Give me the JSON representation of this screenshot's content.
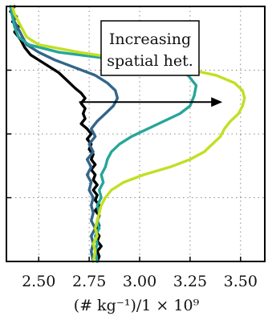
{
  "chart_data": {
    "type": "line",
    "xlabel": "(# kg⁻¹)/1 × 10⁹",
    "ylabel": "",
    "xlim": [
      2.34,
      3.62
    ],
    "ylim": [
      0,
      1
    ],
    "x_ticks": [
      2.5,
      2.75,
      3.0,
      3.25,
      3.5
    ],
    "x_tick_labels": [
      "2.50",
      "2.75",
      "3.00",
      "3.25",
      "3.50"
    ],
    "y_ticks": [
      0.25,
      0.5,
      0.75
    ],
    "grid": true,
    "annotation": {
      "lines": [
        "Increasing",
        "spatial het."
      ],
      "arrow_from": [
        2.7,
        0.625
      ],
      "arrow_to": [
        3.41,
        0.625
      ]
    },
    "series": [
      {
        "color": "#000000",
        "points": [
          [
            2.38,
            1.0
          ],
          [
            2.36,
            0.98
          ],
          [
            2.39,
            0.96
          ],
          [
            2.37,
            0.94
          ],
          [
            2.4,
            0.92
          ],
          [
            2.38,
            0.9
          ],
          [
            2.41,
            0.87
          ],
          [
            2.43,
            0.84
          ],
          [
            2.46,
            0.81
          ],
          [
            2.52,
            0.78
          ],
          [
            2.6,
            0.74
          ],
          [
            2.64,
            0.71
          ],
          [
            2.68,
            0.68
          ],
          [
            2.71,
            0.66
          ],
          [
            2.73,
            0.64
          ],
          [
            2.71,
            0.62
          ],
          [
            2.73,
            0.6
          ],
          [
            2.72,
            0.58
          ],
          [
            2.73,
            0.56
          ],
          [
            2.71,
            0.54
          ],
          [
            2.74,
            0.52
          ],
          [
            2.76,
            0.5
          ],
          [
            2.74,
            0.48
          ],
          [
            2.76,
            0.46
          ],
          [
            2.75,
            0.44
          ],
          [
            2.77,
            0.42
          ],
          [
            2.76,
            0.4
          ],
          [
            2.78,
            0.38
          ],
          [
            2.76,
            0.36
          ],
          [
            2.78,
            0.34
          ],
          [
            2.77,
            0.32
          ],
          [
            2.79,
            0.3
          ],
          [
            2.77,
            0.28
          ],
          [
            2.79,
            0.26
          ],
          [
            2.78,
            0.24
          ],
          [
            2.8,
            0.22
          ],
          [
            2.78,
            0.2
          ],
          [
            2.8,
            0.18
          ],
          [
            2.79,
            0.16
          ],
          [
            2.8,
            0.14
          ],
          [
            2.78,
            0.12
          ],
          [
            2.8,
            0.1
          ],
          [
            2.79,
            0.08
          ],
          [
            2.81,
            0.06
          ],
          [
            2.79,
            0.04
          ],
          [
            2.8,
            0.02
          ],
          [
            2.79,
            0.0
          ]
        ]
      },
      {
        "color": "#33668a",
        "points": [
          [
            2.36,
            1.0
          ],
          [
            2.37,
            0.97
          ],
          [
            2.38,
            0.94
          ],
          [
            2.4,
            0.91
          ],
          [
            2.42,
            0.88
          ],
          [
            2.44,
            0.85
          ],
          [
            2.5,
            0.82
          ],
          [
            2.58,
            0.79
          ],
          [
            2.68,
            0.76
          ],
          [
            2.78,
            0.73
          ],
          [
            2.84,
            0.7
          ],
          [
            2.88,
            0.67
          ],
          [
            2.89,
            0.64
          ],
          [
            2.87,
            0.61
          ],
          [
            2.83,
            0.58
          ],
          [
            2.79,
            0.55
          ],
          [
            2.76,
            0.52
          ],
          [
            2.78,
            0.49
          ],
          [
            2.75,
            0.46
          ],
          [
            2.77,
            0.43
          ],
          [
            2.74,
            0.4
          ],
          [
            2.76,
            0.37
          ],
          [
            2.74,
            0.34
          ],
          [
            2.76,
            0.31
          ],
          [
            2.75,
            0.28
          ],
          [
            2.77,
            0.25
          ],
          [
            2.76,
            0.22
          ],
          [
            2.77,
            0.19
          ],
          [
            2.76,
            0.16
          ],
          [
            2.78,
            0.13
          ],
          [
            2.76,
            0.1
          ],
          [
            2.77,
            0.07
          ],
          [
            2.76,
            0.04
          ],
          [
            2.77,
            0.0
          ]
        ]
      },
      {
        "color": "#26a69a",
        "points": [
          [
            2.36,
            1.0
          ],
          [
            2.37,
            0.96
          ],
          [
            2.38,
            0.92
          ],
          [
            2.4,
            0.88
          ],
          [
            2.45,
            0.85
          ],
          [
            2.6,
            0.82
          ],
          [
            2.8,
            0.8
          ],
          [
            3.0,
            0.78
          ],
          [
            3.15,
            0.76
          ],
          [
            3.24,
            0.73
          ],
          [
            3.28,
            0.69
          ],
          [
            3.27,
            0.65
          ],
          [
            3.25,
            0.61
          ],
          [
            3.2,
            0.58
          ],
          [
            3.12,
            0.55
          ],
          [
            3.04,
            0.52
          ],
          [
            2.96,
            0.49
          ],
          [
            2.9,
            0.46
          ],
          [
            2.86,
            0.43
          ],
          [
            2.84,
            0.4
          ],
          [
            2.83,
            0.37
          ],
          [
            2.81,
            0.34
          ],
          [
            2.82,
            0.31
          ],
          [
            2.8,
            0.28
          ],
          [
            2.81,
            0.25
          ],
          [
            2.79,
            0.22
          ],
          [
            2.8,
            0.19
          ],
          [
            2.79,
            0.16
          ],
          [
            2.8,
            0.13
          ],
          [
            2.78,
            0.1
          ],
          [
            2.79,
            0.07
          ],
          [
            2.78,
            0.04
          ],
          [
            2.79,
            0.0
          ]
        ]
      },
      {
        "color": "#c2df23",
        "points": [
          [
            2.37,
            1.0
          ],
          [
            2.38,
            0.97
          ],
          [
            2.4,
            0.94
          ],
          [
            2.42,
            0.91
          ],
          [
            2.44,
            0.88
          ],
          [
            2.5,
            0.85
          ],
          [
            2.7,
            0.82
          ],
          [
            2.95,
            0.79
          ],
          [
            3.2,
            0.76
          ],
          [
            3.38,
            0.73
          ],
          [
            3.47,
            0.7
          ],
          [
            3.51,
            0.67
          ],
          [
            3.52,
            0.64
          ],
          [
            3.51,
            0.61
          ],
          [
            3.49,
            0.58
          ],
          [
            3.45,
            0.55
          ],
          [
            3.42,
            0.52
          ],
          [
            3.4,
            0.49
          ],
          [
            3.36,
            0.46
          ],
          [
            3.32,
            0.43
          ],
          [
            3.25,
            0.4
          ],
          [
            3.15,
            0.37
          ],
          [
            3.02,
            0.34
          ],
          [
            2.92,
            0.31
          ],
          [
            2.86,
            0.28
          ],
          [
            2.83,
            0.25
          ],
          [
            2.81,
            0.22
          ],
          [
            2.8,
            0.19
          ],
          [
            2.79,
            0.16
          ],
          [
            2.78,
            0.13
          ],
          [
            2.79,
            0.1
          ],
          [
            2.77,
            0.07
          ],
          [
            2.78,
            0.04
          ],
          [
            2.77,
            0.0
          ]
        ]
      }
    ]
  }
}
